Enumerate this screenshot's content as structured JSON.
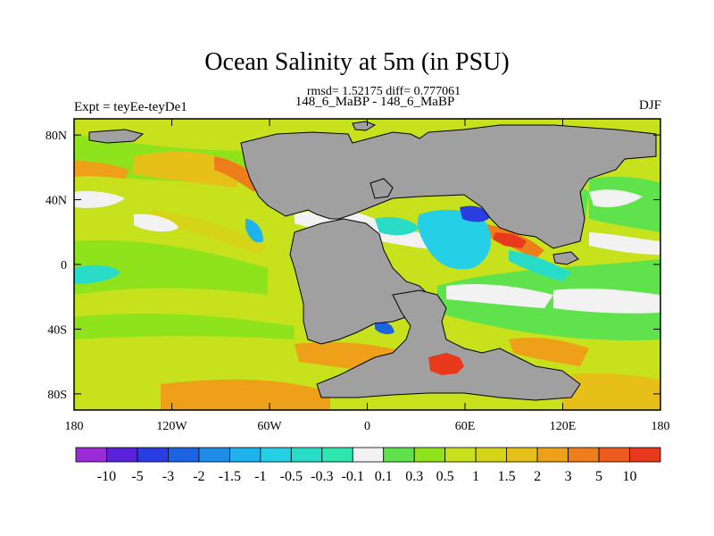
{
  "title": "Ocean Salinity at 5m (in PSU)",
  "stats": "rmsd= 1.52175 diff= 0.777061",
  "left_label": "Expt = teyEe-teyDe1",
  "center_label": "148_6_MaBP - 148_6_MaBP",
  "right_label": "DJF",
  "chart_data": {
    "type": "heatmap",
    "title": "Ocean Salinity at 5m (in PSU)",
    "x_ticks": [
      "180",
      "120W",
      "60W",
      "0",
      "60E",
      "120E",
      "180"
    ],
    "x_tick_values": [
      -180,
      -120,
      -60,
      0,
      60,
      120,
      180
    ],
    "y_ticks": [
      "80N",
      "40N",
      "0",
      "40S",
      "80S"
    ],
    "y_tick_values": [
      80,
      40,
      0,
      -40,
      -80
    ],
    "xlim": [
      -180,
      180
    ],
    "ylim": [
      -90,
      90
    ],
    "colorbar": {
      "labels": [
        "-10",
        "-5",
        "-3",
        "-2",
        "-1.5",
        "-1",
        "-0.5",
        "-0.3",
        "-0.1",
        "0.1",
        "0.3",
        "0.5",
        "1",
        "1.5",
        "2",
        "3",
        "5",
        "10"
      ],
      "colors": [
        "#9a2bd6",
        "#5a22d8",
        "#2a3de0",
        "#1c63e4",
        "#1f8cea",
        "#1fb3ee",
        "#25cfe6",
        "#28dcc8",
        "#2ee6b0",
        "#f2f2f2",
        "#5fe24c",
        "#8fe31c",
        "#c7e21c",
        "#d6d418",
        "#e6c018",
        "#eea019",
        "#ee7e1c",
        "#ec5a1e",
        "#e8391c"
      ]
    },
    "land_color": "#a0a0a0"
  }
}
